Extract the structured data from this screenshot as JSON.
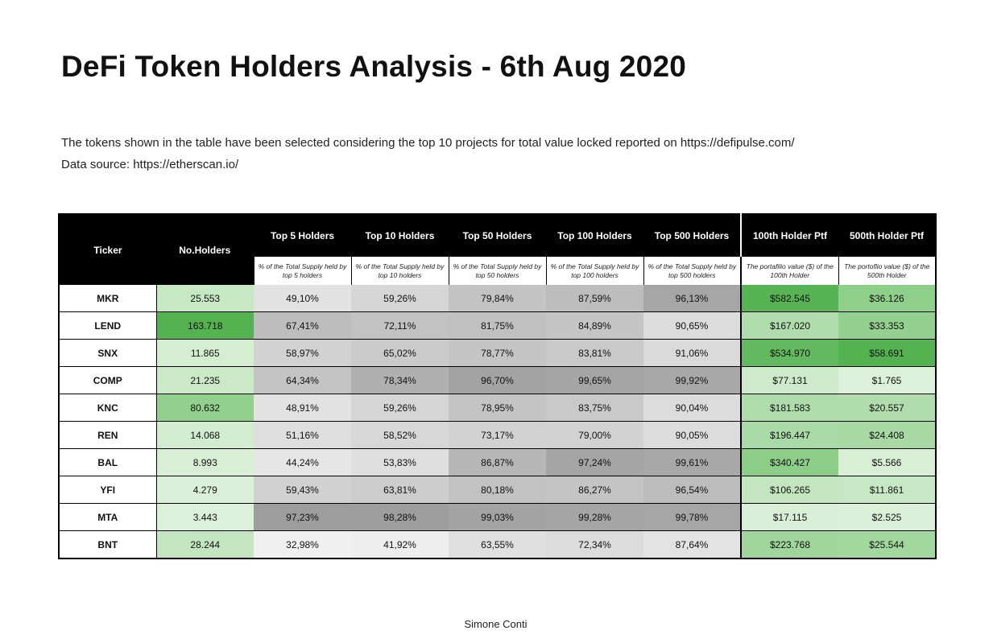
{
  "title": "DeFi Token Holders Analysis - 6th Aug 2020",
  "description": {
    "line1": "The tokens shown in the table have been selected considering the top 10 projects for total value locked reported on https://defipulse.com/",
    "line2": "Data source: https://etherscan.io/"
  },
  "table": {
    "headers": {
      "ticker": "Ticker",
      "holders": "No.Holders",
      "top5": "Top 5 Holders",
      "top10": "Top 10 Holders",
      "top50": "Top 50 Holders",
      "top100": "Top 100 Holders",
      "top500": "Top 500 Holders",
      "ptf100": "100th Holder Ptf",
      "ptf500": "500th Holder Ptf"
    },
    "subheaders": {
      "top5": "% of the Total Supply held by top 5 holders",
      "top10": "% of the Total Supply held by top 10 holders",
      "top50": "% of the Total Supply held by top 50 holders",
      "top100": "% of the Total Supply held by top 100 holders",
      "top500": "% of the Total Supply held by top 500 holders",
      "ptf100": "The portafilio value ($) of the 100th Holder",
      "ptf500": "The portoflio value ($) of the 500th Holder"
    },
    "rows": [
      {
        "ticker": "MKR",
        "holders": "25.553",
        "top5": "49,10%",
        "top10": "59,26%",
        "top50": "79,84%",
        "top100": "87,59%",
        "top500": "96,13%",
        "ptf100": "$582.545",
        "ptf500": "$36.126",
        "colors": [
          "#c6e8c3",
          "#e2e2e2",
          "#d6d6d6",
          "#c3c3c3",
          "#bdbdbd",
          "#a6a6a6",
          "#57b454",
          "#8ecf8a"
        ]
      },
      {
        "ticker": "LEND",
        "holders": "163.718",
        "top5": "67,41%",
        "top10": "72,11%",
        "top50": "81,75%",
        "top100": "84,89%",
        "top500": "90,65%",
        "ptf100": "$167.020",
        "ptf500": "$33.353",
        "colors": [
          "#54b251",
          "#bdbdbd",
          "#c2c2c2",
          "#c0c0c0",
          "#c5c5c5",
          "#dcdcdc",
          "#b1ddae",
          "#94d190"
        ]
      },
      {
        "ticker": "SNX",
        "holders": "11.865",
        "top5": "58,97%",
        "top10": "65,02%",
        "top50": "78,77%",
        "top100": "83,81%",
        "top500": "91,06%",
        "ptf100": "$534.970",
        "ptf500": "$58.691",
        "colors": [
          "#d5eed2",
          "#d2d2d2",
          "#cbcbcb",
          "#c5c5c5",
          "#c9c9c9",
          "#dadada",
          "#63b95f",
          "#54b251"
        ]
      },
      {
        "ticker": "COMP",
        "holders": "21.235",
        "top5": "64,34%",
        "top10": "78,34%",
        "top50": "96,70%",
        "top100": "99,65%",
        "top500": "99,92%",
        "ptf100": "$77.131",
        "ptf500": "$1.765",
        "colors": [
          "#cbe9c7",
          "#c4c4c4",
          "#b0b0b0",
          "#a3a3a3",
          "#a5a5a5",
          "#a8a8a8",
          "#cdebca",
          "#dcf1da"
        ]
      },
      {
        "ticker": "KNC",
        "holders": "80.632",
        "top5": "48,91%",
        "top10": "59,26%",
        "top50": "78,95%",
        "top100": "83,75%",
        "top500": "90,04%",
        "ptf100": "$181.583",
        "ptf500": "$20.557",
        "colors": [
          "#92d08e",
          "#e2e2e2",
          "#d6d6d6",
          "#c4c4c4",
          "#c9c9c9",
          "#dcdcdc",
          "#aedcab",
          "#b1ddae"
        ]
      },
      {
        "ticker": "REN",
        "holders": "14.068",
        "top5": "51,16%",
        "top10": "58,52%",
        "top50": "73,17%",
        "top100": "79,00%",
        "top500": "90,05%",
        "ptf100": "$196.447",
        "ptf500": "$24.408",
        "colors": [
          "#d1ecce",
          "#dedede",
          "#d7d7d7",
          "#d2d2d2",
          "#d2d2d2",
          "#dcdcdc",
          "#aadaa7",
          "#a8d9a5"
        ]
      },
      {
        "ticker": "BAL",
        "holders": "8.993",
        "top5": "44,24%",
        "top10": "53,83%",
        "top50": "86,87%",
        "top100": "97,24%",
        "top500": "99,61%",
        "ptf100": "$340.427",
        "ptf500": "$5.566",
        "colors": [
          "#d8efd5",
          "#e6e6e6",
          "#dfdfdf",
          "#b7b7b7",
          "#a5a5a5",
          "#a8a8a8",
          "#8ccd88",
          "#d8efd5"
        ]
      },
      {
        "ticker": "YFI",
        "holders": "4.279",
        "top5": "59,43%",
        "top10": "63,81%",
        "top50": "80,18%",
        "top100": "86,27%",
        "top500": "96,54%",
        "ptf100": "$106.265",
        "ptf500": "$11.861",
        "colors": [
          "#dbf0d9",
          "#d1d1d1",
          "#cdcdcd",
          "#c2c2c2",
          "#c4c4c4",
          "#bdbdbd",
          "#c3e6c0",
          "#c7e8c4"
        ]
      },
      {
        "ticker": "MTA",
        "holders": "3.443",
        "top5": "97,23%",
        "top10": "98,28%",
        "top50": "99,03%",
        "top100": "99,28%",
        "top500": "99,78%",
        "ptf100": "$17.115",
        "ptf500": "$2.525",
        "colors": [
          "#dcf1da",
          "#9d9d9d",
          "#9e9e9e",
          "#a3a3a3",
          "#a5a5a5",
          "#a6a6a6",
          "#d9efd7",
          "#dbf0d9"
        ]
      },
      {
        "ticker": "BNT",
        "holders": "28.244",
        "top5": "32,98%",
        "top10": "41,92%",
        "top50": "63,55%",
        "top100": "72,34%",
        "top500": "87,64%",
        "ptf100": "$223.768",
        "ptf500": "$25.544",
        "colors": [
          "#c3e6c0",
          "#f0f0f0",
          "#eeeeee",
          "#e0e0e0",
          "#dcdcdc",
          "#e3e3e3",
          "#a0d69c",
          "#a2d79e"
        ]
      }
    ]
  },
  "footer": "Simone Conti"
}
